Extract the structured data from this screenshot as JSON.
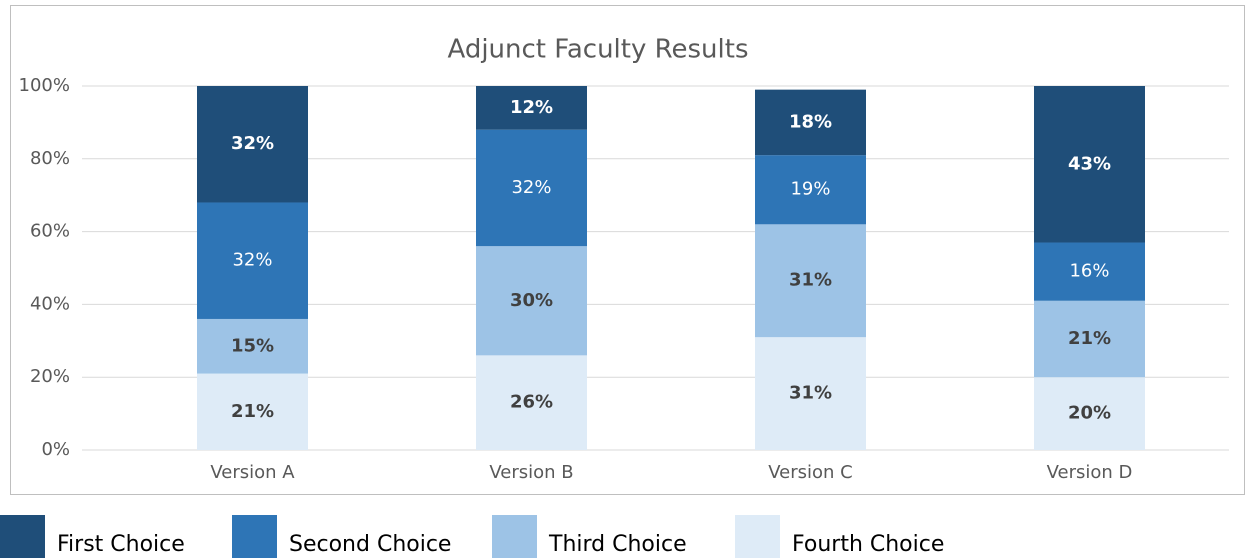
{
  "chart_data": {
    "type": "stacked_bar",
    "title": "Adjunct Faculty Results",
    "categories": [
      "Version A",
      "Version B",
      "Version C",
      "Version D"
    ],
    "series": [
      {
        "name": "First Choice",
        "color": "#1f4e79",
        "values": [
          32,
          12,
          18,
          43
        ],
        "value_labels": [
          "32%",
          "12%",
          "18%",
          "43%"
        ]
      },
      {
        "name": "Second Choice",
        "color": "#2e75b6",
        "values": [
          32,
          32,
          19,
          16
        ],
        "value_labels": [
          "32%",
          "32%",
          "19%",
          "16%"
        ]
      },
      {
        "name": "Third Choice",
        "color": "#9dc3e6",
        "values": [
          15,
          30,
          31,
          21
        ],
        "value_labels": [
          "15%",
          "30%",
          "31%",
          "21%"
        ]
      },
      {
        "name": "Fourth Choice",
        "color": "#deebf7",
        "values": [
          21,
          26,
          31,
          20
        ],
        "value_labels": [
          "21%",
          "26%",
          "31%",
          "20%"
        ]
      }
    ],
    "ylim": [
      0,
      100
    ],
    "yticks": [
      {
        "value": 0,
        "label": "0%"
      },
      {
        "value": 20,
        "label": "20%"
      },
      {
        "value": 40,
        "label": "40%"
      },
      {
        "value": 60,
        "label": "60%"
      },
      {
        "value": 80,
        "label": "80%"
      },
      {
        "value": 100,
        "label": "100%"
      }
    ],
    "grid": true,
    "legend": "bottom"
  }
}
